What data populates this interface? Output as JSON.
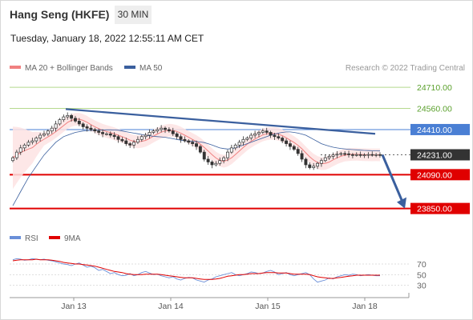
{
  "header": {
    "title": "Hang Seng (HKFE)",
    "timeframe": "30 MIN",
    "datetime": "Tuesday, January 18, 2022 12:55:11 AM CET"
  },
  "legend": {
    "ma20_label": "MA 20 + Bollinger Bands",
    "ma50_label": "MA 50",
    "credit": "Research © 2022 Trading Central"
  },
  "rsi_legend": {
    "rsi_label": "RSI",
    "ma_label": "9MA"
  },
  "colors": {
    "ma20": "#f08080",
    "ma50": "#3a5f9e",
    "bollinger_fill": "#fde3e3",
    "candles": "#333333",
    "trendline": "#3a5f9e",
    "resistance_green": "#b5d98e",
    "resistance_blue": "#4a7fd4",
    "support_red": "#e00000",
    "rsi": "#6a8fd8",
    "rsi_ma": "#e00000"
  },
  "chart_data": {
    "type": "line",
    "title": "Hang Seng (HKFE) 30 MIN",
    "x_tick_labels": [
      "Jan 13",
      "Jan 14",
      "Jan 15",
      "Jan 18"
    ],
    "ylim": [
      23740,
      24790
    ],
    "levels": [
      {
        "value": 24710.0,
        "label": "24710.00",
        "style": "resistance-green"
      },
      {
        "value": 24560.0,
        "label": "24560.00",
        "style": "resistance-green"
      },
      {
        "value": 24410.0,
        "label": "24410.00",
        "style": "resistance-blue"
      },
      {
        "value": 24231.0,
        "label": "24231.00",
        "style": "last-price"
      },
      {
        "value": 24090.0,
        "label": "24090.00",
        "style": "support-red"
      },
      {
        "value": 23850.0,
        "label": "23850.00",
        "style": "support-red"
      }
    ],
    "price_closes": [
      24210,
      24250,
      24280,
      24300,
      24320,
      24330,
      24350,
      24370,
      24380,
      24400,
      24420,
      24450,
      24480,
      24500,
      24510,
      24490,
      24470,
      24450,
      24430,
      24420,
      24410,
      24400,
      24390,
      24380,
      24380,
      24370,
      24360,
      24340,
      24330,
      24310,
      24300,
      24320,
      24340,
      24360,
      24370,
      24390,
      24400,
      24410,
      24420,
      24410,
      24400,
      24380,
      24360,
      24340,
      24330,
      24320,
      24310,
      24290,
      24250,
      24200,
      24180,
      24160,
      24170,
      24190,
      24210,
      24250,
      24280,
      24300,
      24320,
      24340,
      24350,
      24370,
      24380,
      24390,
      24400,
      24390,
      24370,
      24360,
      24350,
      24330,
      24310,
      24290,
      24270,
      24240,
      24200,
      24160,
      24140,
      24150,
      24170,
      24190,
      24210,
      24220,
      24230,
      24235,
      24240,
      24238,
      24232,
      24230,
      24232,
      24228,
      24230,
      24233,
      24230,
      24232,
      24231
    ],
    "ma50": [
      23870,
      23920,
      23970,
      24020,
      24070,
      24110,
      24150,
      24190,
      24230,
      24260,
      24290,
      24320,
      24340,
      24360,
      24370,
      24380,
      24390,
      24395,
      24400,
      24402,
      24404,
      24405,
      24406,
      24407,
      24408,
      24408,
      24407,
      24405,
      24400,
      24395,
      24390,
      24385,
      24380,
      24375,
      24370,
      24366,
      24362,
      24360,
      24358,
      24355,
      24350,
      24345,
      24340,
      24335,
      24330,
      24328,
      24326,
      24325,
      24322,
      24318,
      24310,
      24300,
      24290,
      24280,
      24275,
      24272,
      24275,
      24280,
      24290,
      24300,
      24310,
      24320,
      24330,
      24340,
      24350,
      24360,
      24370,
      24378,
      24385,
      24390,
      24393,
      24393,
      24390,
      24385,
      24378,
      24370,
      24355,
      24340,
      24325,
      24310,
      24300,
      24292,
      24285,
      24280,
      24276,
      24273,
      24270,
      24268,
      24266,
      24264,
      24262,
      24261,
      24260,
      24259,
      24258
    ],
    "trendline": {
      "start_value": 24555,
      "end_value": 24380,
      "start_label": "Jan 13",
      "end_label": "Jan 18"
    },
    "projection_arrow": {
      "from_value": 24231,
      "to_value": 23850
    },
    "rsi_panel": {
      "y_ticks": [
        70,
        50,
        30
      ],
      "ylim": [
        10,
        100
      ],
      "rsi": [
        78,
        80,
        79,
        77,
        78,
        80,
        79,
        78,
        79,
        77,
        76,
        74,
        72,
        70,
        69,
        67,
        70,
        72,
        68,
        64,
        66,
        63,
        58,
        60,
        56,
        52,
        54,
        50,
        48,
        49,
        52,
        48,
        50,
        54,
        56,
        53,
        50,
        51,
        48,
        46,
        44,
        46,
        42,
        40,
        43,
        45,
        44,
        40,
        38,
        36,
        40,
        42,
        46,
        48,
        50,
        52,
        54,
        50,
        48,
        50,
        52,
        55,
        54,
        52,
        53,
        56,
        58,
        55,
        50,
        52,
        54,
        50,
        48,
        50,
        52,
        54,
        50,
        42,
        36,
        38,
        40,
        44,
        42,
        46,
        48,
        50,
        49,
        51,
        50,
        48,
        49,
        50,
        49,
        48,
        48
      ],
      "rsi_ma": [
        76,
        77,
        78,
        78,
        78,
        78,
        79,
        78,
        78,
        78,
        77,
        76,
        75,
        73,
        72,
        71,
        70,
        70,
        69,
        68,
        67,
        66,
        64,
        62,
        60,
        58,
        56,
        55,
        54,
        52,
        51,
        50,
        50,
        50,
        51,
        51,
        51,
        51,
        50,
        49,
        48,
        47,
        46,
        45,
        44,
        44,
        44,
        43,
        42,
        41,
        41,
        41,
        42,
        43,
        45,
        47,
        48,
        49,
        50,
        50,
        51,
        52,
        52,
        52,
        53,
        54,
        54,
        54,
        53,
        53,
        53,
        52,
        51,
        51,
        51,
        51,
        50,
        48,
        46,
        45,
        44,
        43,
        43,
        44,
        45,
        46,
        47,
        48,
        49,
        49,
        49,
        49,
        49,
        49,
        49
      ]
    }
  }
}
